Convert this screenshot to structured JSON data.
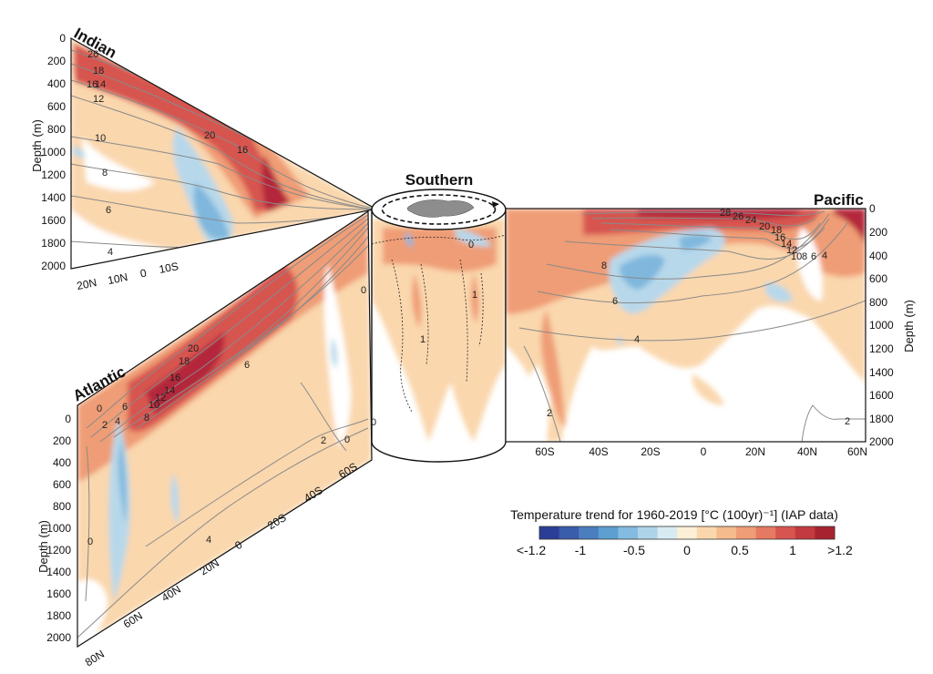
{
  "chart_data": [
    {
      "type": "heatmap",
      "title": "Indian",
      "ylabel": "Depth (m)",
      "y_ticks": [
        "0",
        "200",
        "400",
        "600",
        "800",
        "1000",
        "1200",
        "1400",
        "1600",
        "1800",
        "2000"
      ],
      "x_ticks": [
        "20N",
        "10N",
        "0",
        "10S"
      ],
      "contour_labels": [
        "26",
        "18",
        "16",
        "14",
        "12",
        "10",
        "8",
        "6",
        "4",
        "20",
        "16"
      ]
    },
    {
      "type": "heatmap",
      "title": "Atlantic",
      "ylabel": "Depth (m)",
      "y_ticks": [
        "0",
        "200",
        "400",
        "600",
        "800",
        "1000",
        "1200",
        "1400",
        "1600",
        "1800",
        "2000"
      ],
      "x_ticks": [
        "80N",
        "60N",
        "40N",
        "20N",
        "0",
        "20S",
        "40S",
        "60S"
      ],
      "contour_labels": [
        "0",
        "2",
        "4",
        "6",
        "8",
        "10",
        "12",
        "14",
        "16",
        "18",
        "20",
        "6",
        "4",
        "2",
        "0",
        "0",
        "0"
      ]
    },
    {
      "type": "heatmap",
      "title": "Southern",
      "contour_labels": [
        "1",
        "1",
        "0",
        "0"
      ]
    },
    {
      "type": "heatmap",
      "title": "Pacific",
      "ylabel": "Depth (m)",
      "y_ticks": [
        "0",
        "200",
        "400",
        "600",
        "800",
        "1000",
        "1200",
        "1400",
        "1600",
        "1800",
        "2000"
      ],
      "x_ticks": [
        "60S",
        "40S",
        "20S",
        "0",
        "20N",
        "40N",
        "60N"
      ],
      "contour_labels": [
        "28",
        "24",
        "26",
        "20",
        "18",
        "16",
        "14",
        "12",
        "10",
        "8",
        "6",
        "8",
        "6",
        "4",
        "4",
        "2",
        "2"
      ]
    }
  ],
  "colorbar": {
    "title": "Temperature trend for 1960-2019 [°C (100yr)⁻¹] (IAP data)",
    "tick_labels": [
      "<-1.2",
      "-1",
      "-0.5",
      "0",
      "0.5",
      "1",
      ">1.2"
    ],
    "colors": [
      "#2c3d97",
      "#3a5cab",
      "#4a7ebe",
      "#5c9fd0",
      "#83bce0",
      "#aed4ea",
      "#d8ebf2",
      "#fdf0d6",
      "#fad7ad",
      "#f5bb8d",
      "#ef9d76",
      "#e57a62",
      "#d7554f",
      "#c33b3e",
      "#a82330"
    ]
  },
  "palette": {
    "warm_light": "#fad7ad",
    "warm_mid": "#ef9d76",
    "warm_strong": "#d7554f",
    "warm_max": "#b4283a",
    "cool_light": "#b7d8ea",
    "cool_mid": "#7fb7dd",
    "cool_strong": "#4f8fca",
    "contour": "#8a8a8a"
  }
}
